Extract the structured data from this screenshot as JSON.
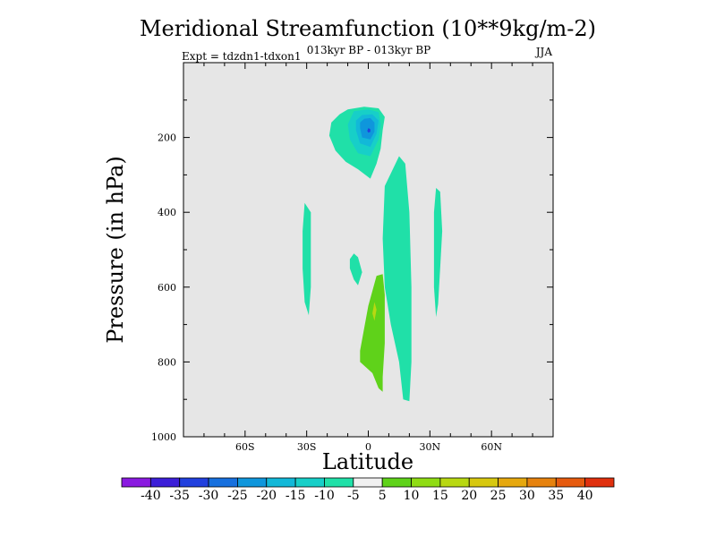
{
  "chart_data": {
    "type": "contour",
    "title": "Meridional Streamfunction (10**9kg/m-2)",
    "subtitle_left": "Expt = tdzdn1-tdxon1",
    "subtitle_center": "013kyr BP - 013kyr BP",
    "subtitle_right": "JJA",
    "xlabel": "Latitude",
    "ylabel": "Pressure (in hPa)",
    "xlim": [
      -90,
      90
    ],
    "ylim": [
      1000,
      0
    ],
    "x_ticks": [
      {
        "value": -60,
        "label": "60S"
      },
      {
        "value": -30,
        "label": "30S"
      },
      {
        "value": 0,
        "label": "0"
      },
      {
        "value": 30,
        "label": "30N"
      },
      {
        "value": 60,
        "label": "60N"
      }
    ],
    "y_ticks": [
      {
        "value": 200,
        "label": "200"
      },
      {
        "value": 400,
        "label": "400"
      },
      {
        "value": 600,
        "label": "600"
      },
      {
        "value": 800,
        "label": "800"
      },
      {
        "value": 1000,
        "label": "1000"
      }
    ],
    "background_color": "#e6e6e6",
    "colorbar": {
      "labels": [
        "-40",
        "-35",
        "-30",
        "-25",
        "-20",
        "-15",
        "-10",
        "-5",
        "5",
        "10",
        "15",
        "20",
        "25",
        "30",
        "35",
        "40"
      ],
      "colors": [
        "#8a1ae0",
        "#3c1ed8",
        "#2140de",
        "#1770de",
        "#0f96dc",
        "#12b8d8",
        "#17cfc8",
        "#20e0a8",
        "#f0f0f0",
        "#5fd21a",
        "#8fdc14",
        "#b8d812",
        "#d7c80f",
        "#e6a80e",
        "#e6820e",
        "#e65a0e",
        "#e0300e"
      ]
    },
    "regions": [
      {
        "level": "-10",
        "color": "#20e0a8",
        "points": [
          [
            -10,
            125
          ],
          [
            -2,
            118
          ],
          [
            5,
            122
          ],
          [
            8,
            145
          ],
          [
            7,
            180
          ],
          [
            6,
            230
          ],
          [
            4,
            270
          ],
          [
            1,
            310
          ],
          [
            -5,
            285
          ],
          [
            -11,
            265
          ],
          [
            -16,
            235
          ],
          [
            -19,
            195
          ],
          [
            -18,
            160
          ],
          [
            -14,
            138
          ]
        ]
      },
      {
        "level": "-15",
        "color": "#17cfc8",
        "points": [
          [
            -7,
            130
          ],
          [
            0,
            125
          ],
          [
            5,
            132
          ],
          [
            6,
            165
          ],
          [
            5,
            205
          ],
          [
            1,
            250
          ],
          [
            -5,
            242
          ],
          [
            -9,
            205
          ],
          [
            -10,
            165
          ]
        ]
      },
      {
        "level": "-20",
        "color": "#12b8d8",
        "points": [
          [
            -3,
            140
          ],
          [
            2,
            138
          ],
          [
            5,
            155
          ],
          [
            4,
            190
          ],
          [
            1,
            225
          ],
          [
            -4,
            216
          ],
          [
            -6,
            180
          ],
          [
            -6,
            155
          ]
        ]
      },
      {
        "level": "-25",
        "color": "#0f96dc",
        "points": [
          [
            -2,
            150
          ],
          [
            1,
            148
          ],
          [
            3,
            160
          ],
          [
            3,
            185
          ],
          [
            1,
            205
          ],
          [
            -3,
            200
          ],
          [
            -4,
            175
          ],
          [
            -4,
            160
          ]
        ]
      },
      {
        "level": "-35",
        "color": "#2140de",
        "points": [
          [
            0,
            175
          ],
          [
            1,
            178
          ],
          [
            1,
            185
          ],
          [
            0,
            187
          ],
          [
            -0.5,
            182
          ]
        ]
      },
      {
        "level": "-5",
        "color": "#20e0a8",
        "points": [
          [
            8,
            330
          ],
          [
            15,
            250
          ],
          [
            18,
            270
          ],
          [
            20,
            400
          ],
          [
            21,
            600
          ],
          [
            21,
            800
          ],
          [
            20,
            905
          ],
          [
            17,
            900
          ],
          [
            15,
            800
          ],
          [
            11,
            700
          ],
          [
            8,
            600
          ],
          [
            7,
            470
          ]
        ]
      },
      {
        "level": "-5",
        "color": "#20e0a8",
        "points": [
          [
            -31,
            375
          ],
          [
            -28,
            400
          ],
          [
            -28,
            500
          ],
          [
            -28,
            600
          ],
          [
            -29,
            675
          ],
          [
            -31,
            640
          ],
          [
            -32,
            550
          ],
          [
            -32,
            450
          ]
        ]
      },
      {
        "level": "-5",
        "color": "#20e0a8",
        "points": [
          [
            33,
            335
          ],
          [
            35,
            345
          ],
          [
            36,
            450
          ],
          [
            35,
            550
          ],
          [
            34,
            645
          ],
          [
            33,
            680
          ],
          [
            32,
            600
          ],
          [
            32,
            500
          ],
          [
            32,
            400
          ]
        ]
      },
      {
        "level": "-5",
        "color": "#20e0a8",
        "points": [
          [
            -7,
            510
          ],
          [
            -5,
            520
          ],
          [
            -3,
            560
          ],
          [
            -5,
            595
          ],
          [
            -7,
            580
          ],
          [
            -9,
            550
          ],
          [
            -9,
            525
          ]
        ]
      },
      {
        "level": "10",
        "color": "#5fd21a",
        "points": [
          [
            4,
            570
          ],
          [
            7,
            565
          ],
          [
            8,
            620
          ],
          [
            8,
            750
          ],
          [
            7,
            840
          ],
          [
            7,
            880
          ],
          [
            5,
            870
          ],
          [
            2,
            830
          ],
          [
            -4,
            800
          ],
          [
            -4,
            770
          ],
          [
            -2,
            710
          ],
          [
            0,
            650
          ],
          [
            2,
            610
          ]
        ]
      },
      {
        "level": "15",
        "color": "#b8d812",
        "points": [
          [
            3,
            640
          ],
          [
            4,
            660
          ],
          [
            3,
            690
          ],
          [
            2,
            670
          ]
        ]
      }
    ]
  }
}
